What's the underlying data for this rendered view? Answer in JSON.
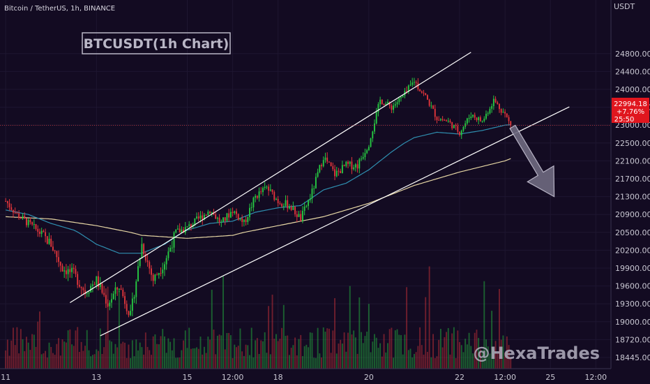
{
  "header": {
    "symbol": "Bitcoin / TetherUS, 1h, BINANCE"
  },
  "annotation": {
    "title_box": "BTCUSDT(1h Chart)"
  },
  "watermark": "@HexaTrades",
  "price_tag": {
    "price": "22994.18",
    "change": "+7.76%",
    "countdown": "25:50"
  },
  "colors": {
    "background": "#130b22",
    "up": "#26c842",
    "down": "#e0353b",
    "ma_fast": "#2f8fb0",
    "ma_slow": "#e6d6a4",
    "price_line": "#d63a3a",
    "arrow": "#6e6a80"
  },
  "chart_data": {
    "type": "candlestick",
    "title": "BTCUSDT(1h Chart)",
    "y_unit": "USDT",
    "ylim": [
      18300,
      24900
    ],
    "y_ticks": [
      18445,
      18720,
      19000,
      19300,
      19600,
      19900,
      20200,
      20500,
      20900,
      21300,
      21700,
      22100,
      22500,
      23000,
      23500,
      24000,
      24400,
      24800
    ],
    "y_tick_labels": [
      "18445.00",
      "18720.00",
      "19000.00",
      "19300.00",
      "19600.00",
      "19900.00",
      "20200.00",
      "20500.00",
      "20900.00",
      "21300.00",
      "21700.00",
      "22100.00",
      "22500.00",
      "23000.00",
      "23500.00",
      "24000.00",
      "24400.00",
      "24800.00"
    ],
    "x_tick_labels": [
      "11",
      "13",
      "15",
      "12:00",
      "18",
      "20",
      "22",
      "12:00",
      "25",
      "12:00"
    ],
    "x_tick_positions": [
      0,
      48,
      96,
      120,
      144,
      192,
      240,
      264,
      288,
      312
    ],
    "x_range": [
      -3,
      320
    ],
    "last_price": 22994.18,
    "ohlc_keypoints": [
      [
        0,
        21200
      ],
      [
        6,
        20900
      ],
      [
        12,
        20700
      ],
      [
        18,
        20500
      ],
      [
        24,
        20300
      ],
      [
        30,
        19900
      ],
      [
        36,
        19800
      ],
      [
        42,
        19500
      ],
      [
        48,
        19700
      ],
      [
        54,
        19300
      ],
      [
        60,
        19600
      ],
      [
        66,
        19100
      ],
      [
        72,
        20300
      ],
      [
        78,
        19700
      ],
      [
        84,
        20000
      ],
      [
        90,
        20500
      ],
      [
        96,
        20600
      ],
      [
        102,
        20800
      ],
      [
        108,
        21000
      ],
      [
        114,
        20700
      ],
      [
        120,
        21000
      ],
      [
        126,
        20700
      ],
      [
        132,
        21300
      ],
      [
        138,
        21500
      ],
      [
        144,
        21200
      ],
      [
        150,
        21100
      ],
      [
        156,
        20800
      ],
      [
        162,
        21400
      ],
      [
        168,
        22200
      ],
      [
        174,
        21800
      ],
      [
        180,
        22000
      ],
      [
        186,
        22000
      ],
      [
        192,
        22500
      ],
      [
        198,
        23700
      ],
      [
        204,
        23500
      ],
      [
        210,
        23800
      ],
      [
        216,
        24200
      ],
      [
        222,
        23800
      ],
      [
        228,
        23200
      ],
      [
        234,
        23100
      ],
      [
        240,
        22800
      ],
      [
        246,
        23300
      ],
      [
        252,
        23100
      ],
      [
        258,
        23700
      ],
      [
        264,
        23300
      ],
      [
        267,
        22994
      ]
    ],
    "ma_fast_keypoints": [
      [
        0,
        21000
      ],
      [
        12,
        20900
      ],
      [
        24,
        20700
      ],
      [
        36,
        20550
      ],
      [
        48,
        20300
      ],
      [
        60,
        20150
      ],
      [
        72,
        20150
      ],
      [
        84,
        20300
      ],
      [
        96,
        20550
      ],
      [
        108,
        20700
      ],
      [
        120,
        20750
      ],
      [
        132,
        20950
      ],
      [
        144,
        21050
      ],
      [
        156,
        21100
      ],
      [
        168,
        21450
      ],
      [
        180,
        21600
      ],
      [
        192,
        21900
      ],
      [
        204,
        22300
      ],
      [
        216,
        22650
      ],
      [
        228,
        22800
      ],
      [
        240,
        22750
      ],
      [
        252,
        22850
      ],
      [
        264,
        23000
      ],
      [
        267,
        23010
      ]
    ],
    "ma_slow_keypoints": [
      [
        0,
        20850
      ],
      [
        24,
        20800
      ],
      [
        48,
        20650
      ],
      [
        72,
        20450
      ],
      [
        96,
        20400
      ],
      [
        120,
        20450
      ],
      [
        144,
        20650
      ],
      [
        168,
        20850
      ],
      [
        192,
        21150
      ],
      [
        216,
        21550
      ],
      [
        240,
        21850
      ],
      [
        264,
        22100
      ],
      [
        267,
        22150
      ]
    ],
    "channel_upper": [
      [
        34,
        19320
      ],
      [
        246,
        24830
      ]
    ],
    "channel_lower": [
      [
        50,
        18780
      ],
      [
        298,
        23510
      ]
    ],
    "projection_arrow": {
      "from": [
        268,
        22950
      ],
      "to": [
        290,
        21300
      ]
    },
    "volume_max_relative": 1.0
  }
}
